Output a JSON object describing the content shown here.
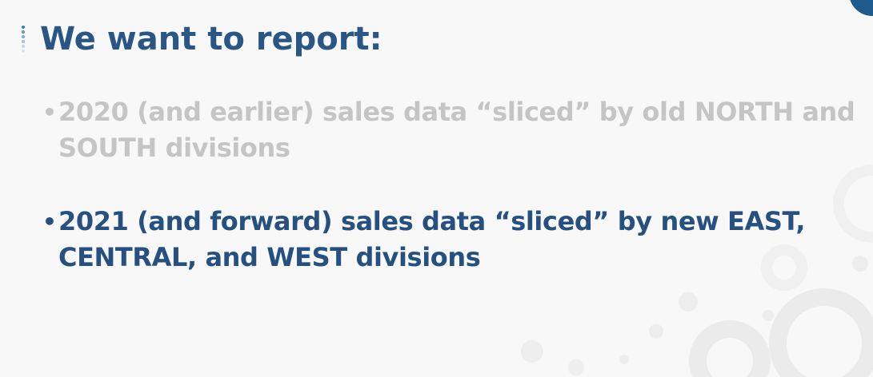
{
  "slide": {
    "title": "We want to report:",
    "bullets": [
      {
        "text": "2020 (and earlier) sales data “sliced” by old NORTH and SOUTH divisions",
        "state": "dimmed",
        "color": "#c5c5c5"
      },
      {
        "text": "2021 (and forward) sales data “sliced” by new EAST, CENTRAL, and WEST divisions",
        "state": "highlighted",
        "color": "#25507f"
      }
    ],
    "bullet_marker": "•"
  },
  "colors": {
    "title": "#2a5686",
    "accent": "#1f5a8c",
    "background": "#f8f8f8"
  }
}
